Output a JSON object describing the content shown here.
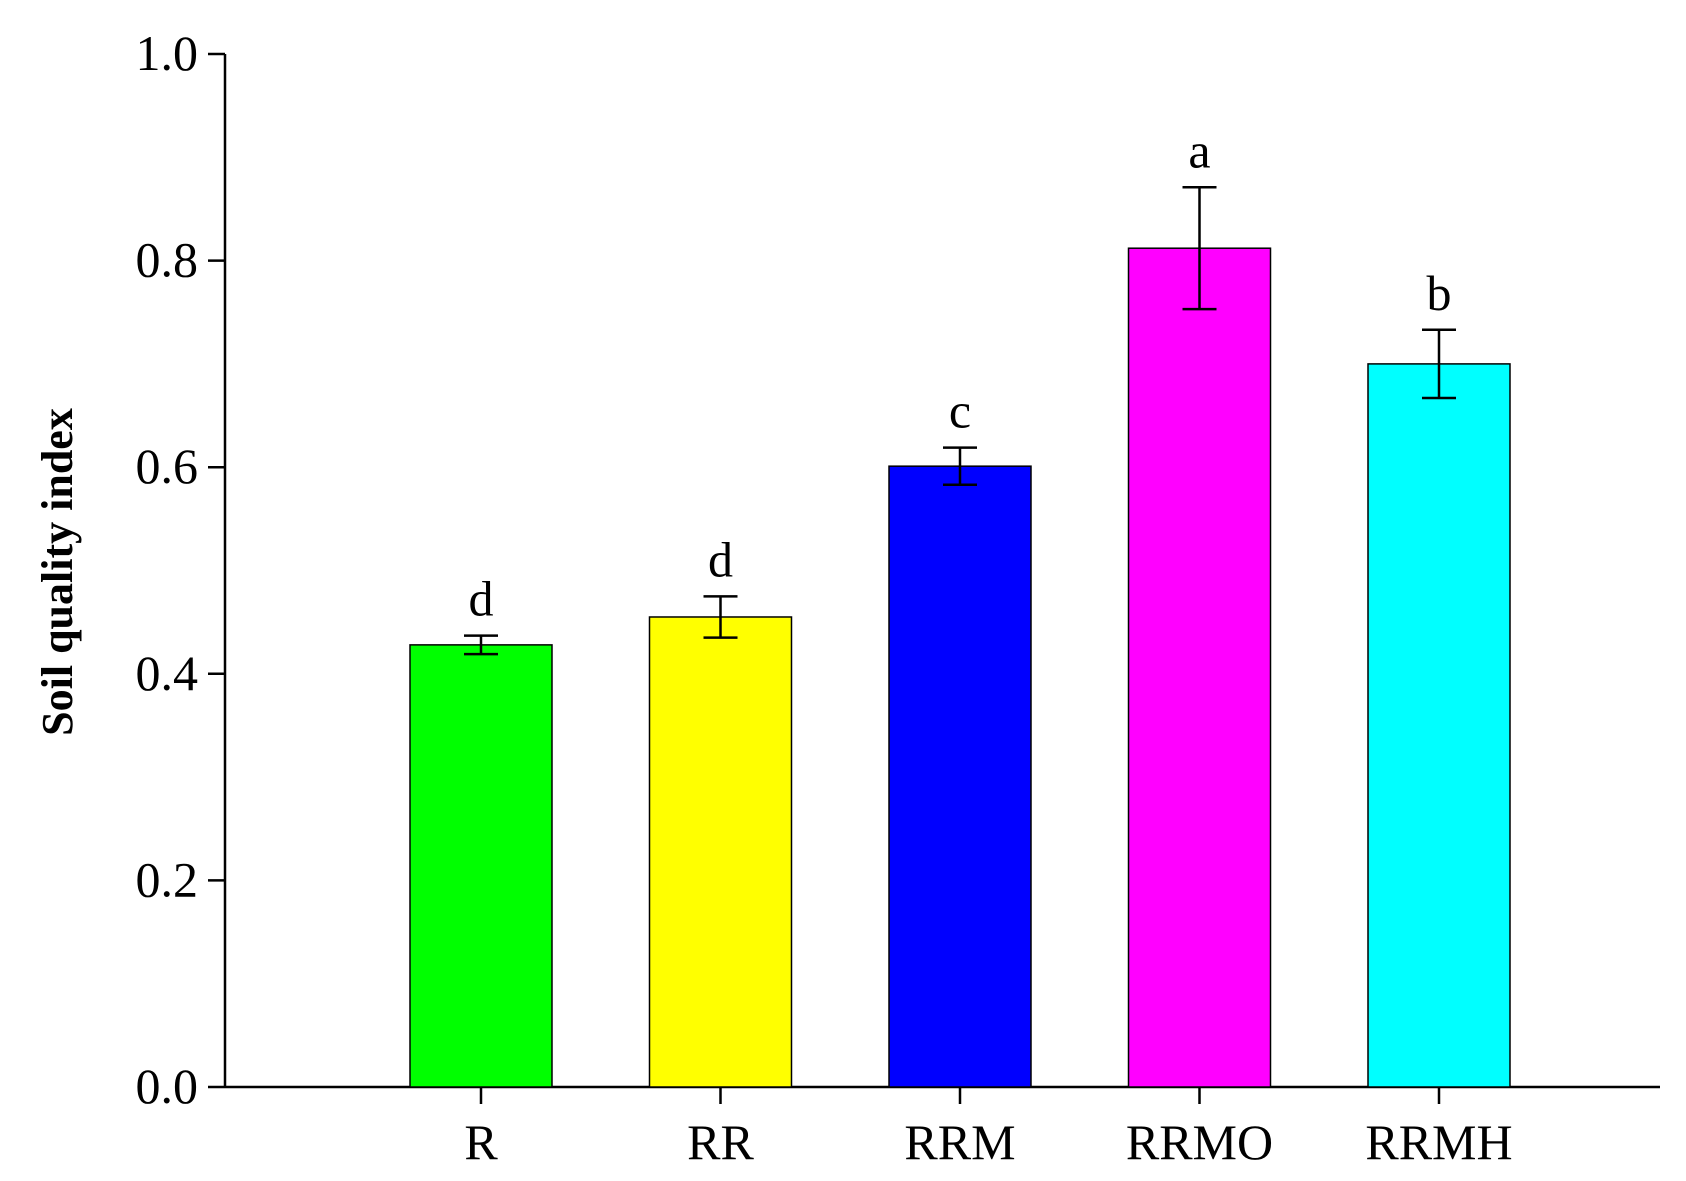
{
  "chart_data": {
    "type": "bar",
    "title": "",
    "xlabel": "",
    "ylabel": "Soil quality index",
    "ylim": [
      0.0,
      1.0
    ],
    "yticks": [
      {
        "value": 0.0,
        "label": "0.0"
      },
      {
        "value": 0.2,
        "label": "0.2"
      },
      {
        "value": 0.4,
        "label": "0.4"
      },
      {
        "value": 0.6,
        "label": "0.6"
      },
      {
        "value": 0.8,
        "label": "0.8"
      },
      {
        "value": 1.0,
        "label": "1.0"
      }
    ],
    "grid": false,
    "legend": "none",
    "categories": [
      "R",
      "RR",
      "RRM",
      "RRMO",
      "RRMH"
    ],
    "values": [
      0.428,
      0.455,
      0.601,
      0.812,
      0.7
    ],
    "error": [
      0.009,
      0.02,
      0.018,
      0.059,
      0.033
    ],
    "significance": [
      "d",
      "d",
      "c",
      "a",
      "b"
    ],
    "colors": [
      "#00ff00",
      "#ffff00",
      "#0000ff",
      "#ff00ff",
      "#00ffff"
    ]
  }
}
